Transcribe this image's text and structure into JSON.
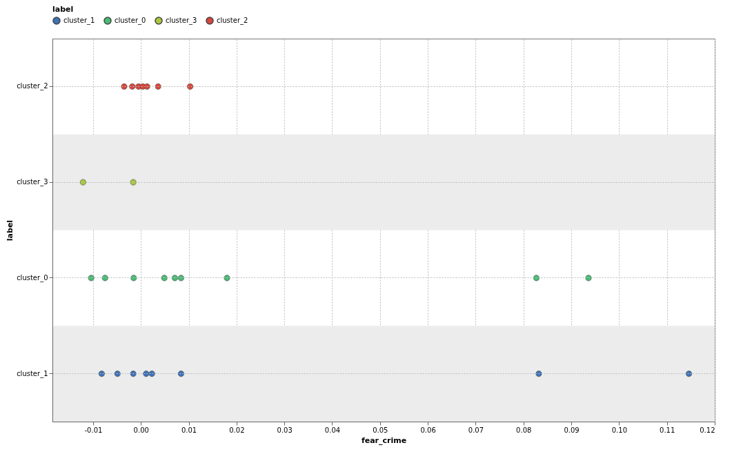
{
  "chart_data": {
    "type": "scatter",
    "orientation": "horizontal",
    "xlabel": "fear_crime",
    "ylabel": "label",
    "legend_title": "label",
    "legend": "top left",
    "grid": true,
    "marker": "circle",
    "categories": [
      "cluster_2",
      "cluster_3",
      "cluster_0",
      "cluster_1"
    ],
    "xlim": [
      -0.0185,
      0.12
    ],
    "xticks": [
      -0.01,
      {
        "value": 0,
        "label": "0.00"
      },
      0.01,
      0.02,
      0.03,
      0.04,
      0.05,
      0.06,
      0.07,
      0.08,
      0.09,
      {
        "value": 0.1,
        "label": "0.10"
      },
      0.11,
      0.12
    ],
    "bands": [
      {
        "axis": "y",
        "from": "cluster_1",
        "to": "cluster_1",
        "color": "#ececec"
      },
      {
        "axis": "y",
        "from": "cluster_3",
        "to": "cluster_3",
        "color": "#ececec"
      }
    ],
    "series": [
      {
        "name": "cluster_1",
        "color": "#3d72b8",
        "x": [
          "cluster_1",
          "cluster_1",
          "cluster_1",
          "cluster_1",
          "cluster_1",
          "cluster_1",
          "cluster_1",
          "cluster_1"
        ],
        "values": [
          -0.0082,
          -0.0049,
          -0.0016,
          0.0011,
          0.0023,
          0.0084,
          0.0832,
          0.1146
        ]
      },
      {
        "name": "cluster_0",
        "color": "#47bc73",
        "x": [
          "cluster_0",
          "cluster_0",
          "cluster_0",
          "cluster_0",
          "cluster_0",
          "cluster_0",
          "cluster_0",
          "cluster_0",
          "cluster_0"
        ],
        "values": [
          -0.0104,
          -0.0075,
          -0.0015,
          0.0049,
          0.0071,
          0.0084,
          0.018,
          0.0827,
          0.0936
        ]
      },
      {
        "name": "cluster_3",
        "color": "#a9c83c",
        "x": [
          "cluster_3",
          "cluster_3"
        ],
        "values": [
          -0.0121,
          -0.0016
        ]
      },
      {
        "name": "cluster_2",
        "color": "#d9453b",
        "x": [
          "cluster_2",
          "cluster_2",
          "cluster_2",
          "cluster_2",
          "cluster_2",
          "cluster_2",
          "cluster_2"
        ],
        "values": [
          -0.0005,
          0.0004,
          0.0103,
          -0.0035,
          -0.0018,
          0.0013,
          0.0036
        ]
      }
    ]
  }
}
